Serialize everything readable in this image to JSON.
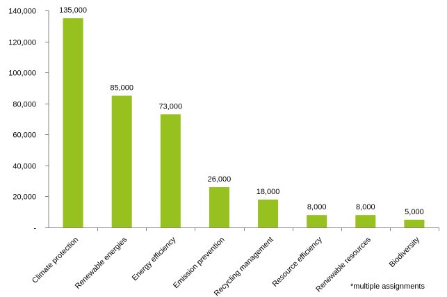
{
  "chart_data": {
    "type": "bar",
    "categories": [
      "Climate protection",
      "Renewable energies",
      "Energy efficiency",
      "Emission prevention",
      "Recycling management",
      "Resource efficiency",
      "Renewable resources",
      "Biodiversity"
    ],
    "values": [
      135000,
      85000,
      73000,
      26000,
      18000,
      8000,
      8000,
      5000
    ],
    "data_labels": [
      "135,000",
      "85,000",
      "73,000",
      "26,000",
      "18,000",
      "8,000",
      "8,000",
      "5,000"
    ],
    "y_ticks": [
      0,
      20000,
      40000,
      60000,
      80000,
      100000,
      120000,
      140000
    ],
    "y_tick_labels": [
      "-",
      "20,000",
      "40,000",
      "60,000",
      "80,000",
      "100,000",
      "120,000",
      "140,000"
    ],
    "ylim": [
      0,
      140000
    ],
    "grid": false,
    "bar_color": "#96c11f",
    "footnote": "*multiple assignments"
  }
}
